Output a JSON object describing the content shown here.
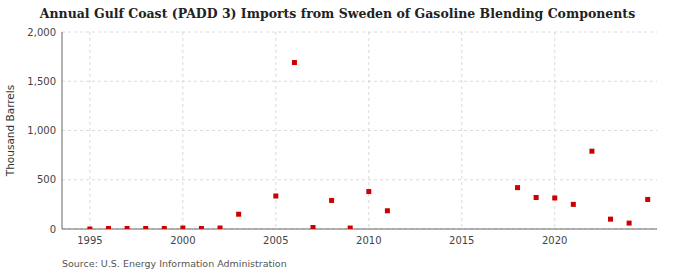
{
  "chart_data": {
    "type": "scatter",
    "title": "Annual Gulf Coast (PADD 3) Imports from Sweden of Gasoline Blending Components",
    "ylabel": "Thousand Barrels",
    "source": "Source: U.S. Energy Information Administration",
    "color": "#cc0000",
    "marker": "square",
    "grid": true,
    "xlim": [
      1993.5,
      2025.5
    ],
    "ylim": [
      0,
      2000
    ],
    "xticks": [
      1995,
      2000,
      2005,
      2010,
      2015,
      2020
    ],
    "yticks": [
      0,
      500,
      {
        "value": 1000,
        "label": "1,000"
      },
      {
        "value": 1500,
        "label": "1,500"
      },
      {
        "value": 2000,
        "label": "2,000"
      }
    ],
    "x": [
      1995,
      1996,
      1997,
      1998,
      1999,
      2000,
      2001,
      2002,
      2003,
      2005,
      2006,
      2007,
      2008,
      2009,
      2010,
      2011,
      2018,
      2019,
      2020,
      2021,
      2022,
      2023,
      2024,
      2025
    ],
    "values": [
      0,
      5,
      5,
      5,
      5,
      10,
      5,
      10,
      150,
      335,
      1690,
      15,
      290,
      10,
      380,
      185,
      420,
      320,
      315,
      250,
      790,
      100,
      60,
      300
    ]
  }
}
